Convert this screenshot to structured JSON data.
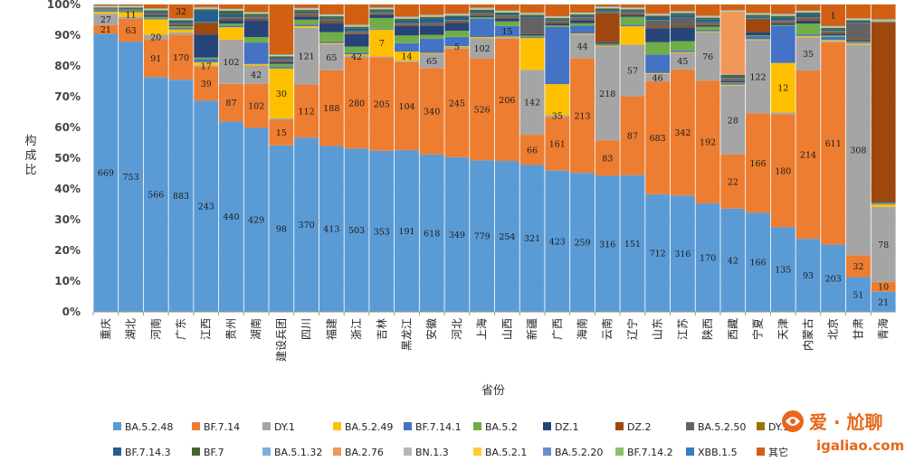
{
  "chart_data": {
    "type": "bar",
    "stacked": "percent",
    "title": "",
    "xlabel": "省份",
    "ylabel": "构成比",
    "ylim": [
      0,
      100
    ],
    "yticks": [
      "0%",
      "10%",
      "20%",
      "30%",
      "40%",
      "50%",
      "60%",
      "70%",
      "80%",
      "90%",
      "100%"
    ],
    "categories": [
      "重庆",
      "湖北",
      "河南",
      "广东",
      "江西",
      "贵州",
      "湖南",
      "建设兵团",
      "四川",
      "福建",
      "浙江",
      "吉林",
      "黑龙江",
      "安徽",
      "河北",
      "上海",
      "山西",
      "新疆",
      "广西",
      "海南",
      "云南",
      "辽宁",
      "山东",
      "江苏",
      "陕西",
      "西藏",
      "宁夏",
      "天津",
      "内蒙古",
      "北京",
      "甘肃",
      "青海"
    ],
    "lineages": [
      "BA.5.2.48",
      "BF.7.14",
      "DY.1",
      "BA.5.2.49",
      "BF.7.14.1",
      "BA.5.2",
      "DZ.1",
      "DZ.2",
      "BA.5.2.50",
      "DY.1.1",
      "BF.7.14.3",
      "BF.7",
      "BA.5.1.32",
      "BA.2.76",
      "BN.1.3",
      "BA.5.2.1",
      "BA.5.2.20",
      "BF.7.14.2",
      "XBB.1.5",
      "其它"
    ],
    "colors": [
      "#5b9bd5",
      "#ed7d31",
      "#a5a5a5",
      "#ffc000",
      "#4472c4",
      "#70ad47",
      "#264478",
      "#9e480e",
      "#636363",
      "#997300",
      "#255e91",
      "#43682b",
      "#7cafdd",
      "#f1975a",
      "#b7b7b7",
      "#ffcd33",
      "#698ed0",
      "#8cc168",
      "#327dc2",
      "#d26012"
    ],
    "series_values": [
      {
        "name": "BA.5.2.48",
        "values": [
          91.0,
          88.0,
          75.8,
          75.6,
          67.7,
          61.2,
          60.0,
          53.6,
          54.0,
          53.5,
          52.8,
          52.6,
          52.3,
          50.8,
          50.2,
          49.2,
          49.0,
          47.7,
          45.8,
          45.1,
          44.7,
          44.2,
          38.1,
          37.8,
          35.4,
          33.6,
          32.3,
          27.4,
          23.7,
          21.8,
          11.3,
          6.6
        ]
      },
      {
        "name": "BF.7.14",
        "values": [
          2.9,
          7.4,
          12.2,
          14.6,
          10.9,
          12.1,
          14.3,
          8.2,
          16.4,
          24.4,
          29.4,
          30.6,
          28.5,
          27.9,
          35.2,
          33.2,
          39.7,
          9.8,
          17.4,
          37.2,
          11.7,
          25.5,
          36.5,
          40.9,
          40.0,
          17.6,
          32.3,
          36.5,
          54.5,
          65.6,
          7.1,
          3.2
        ]
      },
      {
        "name": "DY.1",
        "values": [
          3.7,
          0.7,
          1.4,
          0.8,
          0.4,
          14.2,
          6.0,
          0.5,
          17.6,
          8.4,
          0.6,
          0.3,
          0.4,
          4.6,
          0.5,
          6.4,
          0.4,
          21.1,
          0.6,
          7.7,
          30.8,
          16.7,
          2.4,
          5.4,
          15.8,
          22.4,
          23.8,
          0.6,
          10.8,
          0.4,
          68.5,
          24.5
        ]
      },
      {
        "name": "BA.5.2.49",
        "values": [
          0.6,
          1.5,
          5.0,
          1.0,
          1.0,
          4.0,
          0.5,
          16.0,
          0.5,
          0.4,
          0.4,
          8.7,
          3.0,
          0.3,
          0.3,
          0.4,
          0.3,
          10.3,
          10.0,
          0.3,
          0.3,
          6.0,
          0.3,
          0.3,
          0.3,
          0.3,
          0.3,
          16.0,
          0.4,
          0.3,
          0.4,
          0.8
        ]
      },
      {
        "name": "BF.7.14.1",
        "values": [
          0.3,
          0.3,
          0.3,
          0.5,
          1.0,
          0.5,
          7.0,
          0.5,
          0.5,
          0.5,
          0.5,
          0.3,
          2.7,
          4.5,
          3.0,
          6.0,
          3.4,
          0.3,
          18.5,
          2.5,
          0.3,
          0.5,
          6.0,
          0.5,
          0.5,
          0.5,
          1.0,
          12.0,
          0.5,
          1.0,
          0.3,
          0.3
        ]
      },
      {
        "name": "BA.5.2",
        "values": [
          0.2,
          0.2,
          0.5,
          0.5,
          0.5,
          0.7,
          1.8,
          1.0,
          1.5,
          3.0,
          2.0,
          3.5,
          2.5,
          1.3,
          2.0,
          0.5,
          1.5,
          0.5,
          0.5,
          0.8,
          0.3,
          2.5,
          4.0,
          3.0,
          1.0,
          0.3,
          0.3,
          0.3,
          3.5,
          0.5,
          0.3,
          0.3
        ]
      },
      {
        "name": "DZ.1",
        "values": [
          0.1,
          0.1,
          0.5,
          0.3,
          7.4,
          1.0,
          5.5,
          0.5,
          1.0,
          3.0,
          4.0,
          1.0,
          3.0,
          3.0,
          2.5,
          0.5,
          1.0,
          0.5,
          0.5,
          1.0,
          0.5,
          0.5,
          4.5,
          4.5,
          0.5,
          0.5,
          1.0,
          0.5,
          1.0,
          0.5,
          0.5,
          0.2
        ]
      },
      {
        "name": "DZ.2",
        "values": [
          0.1,
          0.1,
          0.1,
          0.3,
          3.5,
          0.3,
          0.4,
          0.3,
          0.4,
          0.5,
          0.3,
          0.2,
          0.3,
          0.2,
          0.3,
          0.3,
          0.3,
          0.2,
          0.3,
          0.3,
          9.5,
          0.3,
          0.5,
          0.5,
          0.3,
          0.3,
          4.0,
          0.3,
          0.5,
          0.3,
          0.3,
          58.6
        ]
      },
      {
        "name": "BA.5.2.50",
        "values": [
          0.2,
          0.2,
          0.5,
          0.3,
          0.5,
          0.5,
          0.5,
          0.5,
          0.5,
          0.5,
          0.5,
          0.5,
          0.5,
          0.5,
          0.5,
          0.5,
          0.5,
          5.0,
          0.5,
          0.5,
          0.5,
          0.5,
          2.0,
          2.5,
          0.5,
          0.5,
          0.5,
          0.5,
          0.5,
          0.5,
          5.0,
          0.1
        ]
      },
      {
        "name": "DY.1.1",
        "values": [
          0.1,
          0.1,
          0.1,
          0.1,
          0.1,
          0.1,
          0.1,
          0.1,
          0.1,
          0.1,
          0.1,
          0.1,
          0.1,
          0.1,
          0.1,
          0.1,
          0.1,
          0.1,
          0.1,
          0.1,
          0.1,
          0.1,
          0.1,
          0.1,
          0.1,
          0.1,
          0.1,
          0.1,
          0.1,
          0.1,
          0.1,
          0.1
        ]
      },
      {
        "name": "BF.7.14.3",
        "values": [
          0.2,
          0.2,
          0.5,
          0.5,
          3.5,
          1.2,
          0.5,
          0.5,
          0.5,
          0.5,
          1.0,
          0.5,
          1.0,
          1.5,
          1.0,
          0.5,
          0.5,
          0.5,
          0.5,
          0.5,
          0.5,
          0.5,
          1.0,
          1.0,
          1.0,
          0.5,
          0.5,
          1.0,
          1.0,
          0.5,
          0.5,
          0.1
        ]
      },
      {
        "name": "BF.7",
        "values": [
          0.2,
          0.3,
          0.4,
          0.5,
          0.5,
          1.0,
          0.5,
          0.5,
          0.5,
          0.5,
          0.5,
          0.5,
          0.5,
          0.5,
          0.5,
          0.5,
          0.5,
          0.5,
          0.5,
          0.5,
          0.5,
          0.5,
          0.5,
          0.5,
          0.5,
          0.5,
          0.5,
          0.5,
          0.5,
          0.5,
          0.5,
          0.1
        ]
      },
      {
        "name": "BA.5.1.32",
        "values": [
          0.1,
          0.1,
          0.1,
          0.1,
          0.1,
          0.1,
          0.1,
          0.1,
          0.1,
          0.1,
          0.1,
          0.1,
          0.1,
          0.1,
          0.1,
          0.1,
          0.1,
          0.1,
          0.1,
          0.1,
          0.1,
          0.1,
          0.1,
          0.1,
          0.1,
          0.1,
          0.1,
          0.1,
          0.1,
          0.1,
          0.1,
          0.1
        ]
      },
      {
        "name": "BA.2.76",
        "values": [
          0.1,
          0.1,
          0.1,
          0.1,
          0.1,
          0.1,
          0.1,
          0.1,
          0.1,
          0.1,
          0.1,
          0.1,
          0.1,
          0.1,
          0.1,
          0.1,
          0.1,
          0.1,
          0.1,
          0.1,
          0.1,
          0.1,
          0.1,
          0.1,
          0.1,
          20.5,
          0.1,
          0.1,
          0.1,
          0.1,
          0.1,
          0.1
        ]
      },
      {
        "name": "BN.1.3",
        "values": [
          0.1,
          0.1,
          0.1,
          0.1,
          0.1,
          0.1,
          0.1,
          0.1,
          0.1,
          0.1,
          0.1,
          0.1,
          0.1,
          0.1,
          0.1,
          0.1,
          0.1,
          0.1,
          0.1,
          0.1,
          0.1,
          0.1,
          0.1,
          0.1,
          0.1,
          0.1,
          0.1,
          0.1,
          0.1,
          0.1,
          0.1,
          0.1
        ]
      },
      {
        "name": "BA.5.2.1",
        "values": [
          0.1,
          0.1,
          0.1,
          0.1,
          0.1,
          0.1,
          0.1,
          0.1,
          0.1,
          0.1,
          0.1,
          0.1,
          0.1,
          0.1,
          0.1,
          0.1,
          0.1,
          0.1,
          0.1,
          0.1,
          0.1,
          0.1,
          0.1,
          0.1,
          0.1,
          0.1,
          0.1,
          0.1,
          0.1,
          0.1,
          0.1,
          0.1
        ]
      },
      {
        "name": "BA.5.2.20",
        "values": [
          0.1,
          0.1,
          0.1,
          0.1,
          0.1,
          0.1,
          0.1,
          0.1,
          0.1,
          0.1,
          0.1,
          0.1,
          0.1,
          0.1,
          0.1,
          0.1,
          0.1,
          0.1,
          0.1,
          0.1,
          0.1,
          0.1,
          0.1,
          0.1,
          0.1,
          0.1,
          0.1,
          0.1,
          0.1,
          0.1,
          0.1,
          0.1
        ]
      },
      {
        "name": "BF.7.14.2",
        "values": [
          0.1,
          0.1,
          0.1,
          0.1,
          0.1,
          0.1,
          0.1,
          0.1,
          0.1,
          0.1,
          0.1,
          0.1,
          0.1,
          0.1,
          0.1,
          0.1,
          0.1,
          0.1,
          0.1,
          0.1,
          0.1,
          0.1,
          0.1,
          0.1,
          0.1,
          0.1,
          0.1,
          0.1,
          0.1,
          0.1,
          0.1,
          0.1
        ]
      },
      {
        "name": "XBB.1.5",
        "values": [
          0.1,
          0.1,
          0.1,
          0.1,
          0.1,
          0.1,
          0.1,
          0.1,
          0.1,
          0.1,
          0.1,
          0.1,
          0.1,
          0.1,
          0.1,
          0.1,
          0.1,
          0.1,
          0.1,
          0.1,
          0.1,
          0.1,
          0.1,
          0.1,
          0.1,
          0.1,
          0.1,
          0.1,
          0.1,
          0.1,
          0.1,
          0.1
        ]
      },
      {
        "name": "其它",
        "values": [
          0.3,
          0.3,
          1.2,
          4.4,
          0.8,
          1.3,
          2.4,
          16.0,
          1.0,
          3.1,
          6.5,
          0.9,
          3.9,
          3.3,
          2.9,
          1.0,
          1.9,
          2.6,
          3.7,
          2.5,
          0.6,
          0.9,
          2.9,
          2.1,
          3.6,
          1.8,
          2.7,
          3.0,
          1.9,
          6.9,
          4.4,
          4.8
        ]
      }
    ],
    "bar_labels": [
      {
        "series": 0,
        "labels": [
          "669",
          "753",
          "566",
          "883",
          "243",
          "440",
          "429",
          "98",
          "370",
          "413",
          "503",
          "353",
          "191",
          "618",
          "349",
          "779",
          "254",
          "321",
          "423",
          "259",
          "316",
          "151",
          "712",
          "316",
          "170",
          "42",
          "166",
          "135",
          "93",
          "203",
          "51",
          "21"
        ]
      },
      {
        "series": 1,
        "labels": [
          "21",
          "63",
          "91",
          "170",
          "39",
          "87",
          "102",
          "15",
          "112",
          "188",
          "280",
          "205",
          "104",
          "340",
          "245",
          "526",
          "206",
          "66",
          "161",
          "213",
          "83",
          "87",
          "683",
          "342",
          "192",
          "22",
          "166",
          "180",
          "214",
          "611",
          "32",
          "10"
        ]
      },
      {
        "series": 2,
        "labels": [
          "27",
          "",
          "20",
          "",
          "17",
          "102",
          "42",
          "",
          "121",
          "65",
          "42",
          "",
          "",
          "65",
          "",
          "102",
          "",
          "142",
          "35",
          "44",
          "218",
          "57",
          "46",
          "45",
          "76",
          "28",
          "122",
          "",
          "35",
          "",
          "308",
          "78"
        ]
      },
      {
        "series": 3,
        "labels": [
          "",
          "11",
          "",
          "",
          "",
          "",
          "",
          "30",
          "",
          "",
          "",
          "7",
          "14",
          "",
          "5",
          "",
          "",
          "",
          "",
          "",
          "",
          "",
          "",
          "",
          "",
          "",
          "",
          "12",
          "",
          "",
          "",
          ""
        ]
      },
      {
        "series": 4,
        "labels": [
          "",
          "",
          "",
          "",
          "",
          "",
          "",
          "",
          "",
          "",
          "",
          "",
          "",
          "",
          "",
          "",
          "15",
          "",
          "",
          "",
          "",
          "",
          "",
          "",
          "",
          "",
          "",
          "",
          "",
          "",
          "",
          ""
        ]
      },
      {
        "series": 19,
        "labels": [
          "",
          "",
          "",
          "32",
          "",
          "",
          "",
          "",
          "",
          "",
          "",
          "",
          "",
          "",
          "",
          "",
          "",
          "",
          "",
          "",
          "",
          "",
          "",
          "",
          "",
          "",
          "",
          "",
          "",
          "1",
          "",
          ""
        ]
      }
    ],
    "legend": [
      "BA.5.2.48",
      "BF.7.14",
      "DY.1",
      "BA.5.2.49",
      "BF.7.14.1",
      "BA.5.2",
      "DZ.1",
      "DZ.2",
      "BA.5.2.50",
      "DY.1.1",
      "BF.7.14.3",
      "BF.7",
      "BA.5.1.32",
      "BA.2.76",
      "BN.1.3",
      "BA.5.2.1",
      "BA.5.2.20",
      "BF.7.14.2",
      "XBB.1.5",
      "其它"
    ],
    "legend_position": "bottom"
  },
  "watermark": {
    "brand": "爱 · 尬聊",
    "url": "igaliao.com",
    "color": "#e8671a"
  }
}
